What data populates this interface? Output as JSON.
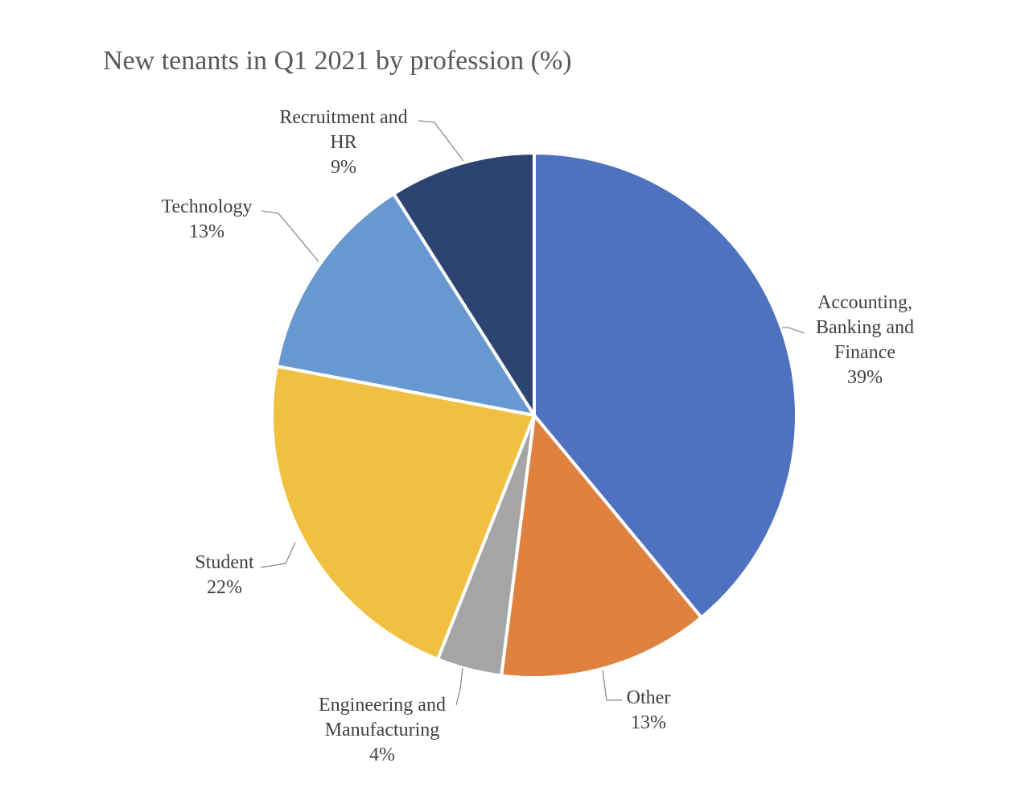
{
  "chart_data": {
    "type": "pie",
    "title": "New tenants in Q1 2021 by profession (%)",
    "unit": "%",
    "slices": [
      {
        "label_lines": [
          "Accounting,",
          "Banking and",
          "Finance"
        ],
        "value": 39,
        "value_label": "39%",
        "color": "#4e71c0"
      },
      {
        "label_lines": [
          "Other"
        ],
        "value": 13,
        "value_label": "13%",
        "color": "#df8240"
      },
      {
        "label_lines": [
          "Engineering and",
          "Manufacturing"
        ],
        "value": 4,
        "value_label": "4%",
        "color": "#a5a5a5"
      },
      {
        "label_lines": [
          "Student"
        ],
        "value": 22,
        "value_label": "22%",
        "color": "#f1c041"
      },
      {
        "label_lines": [
          "Technology"
        ],
        "value": 13,
        "value_label": "13%",
        "color": "#6898d0"
      },
      {
        "label_lines": [
          "Recruitment and",
          "HR"
        ],
        "value": 9,
        "value_label": "9%",
        "color": "#2d4473"
      }
    ],
    "start_angle": "12 o'clock",
    "direction": "clockwise",
    "legend": "none",
    "labels": "outside with leader lines"
  }
}
